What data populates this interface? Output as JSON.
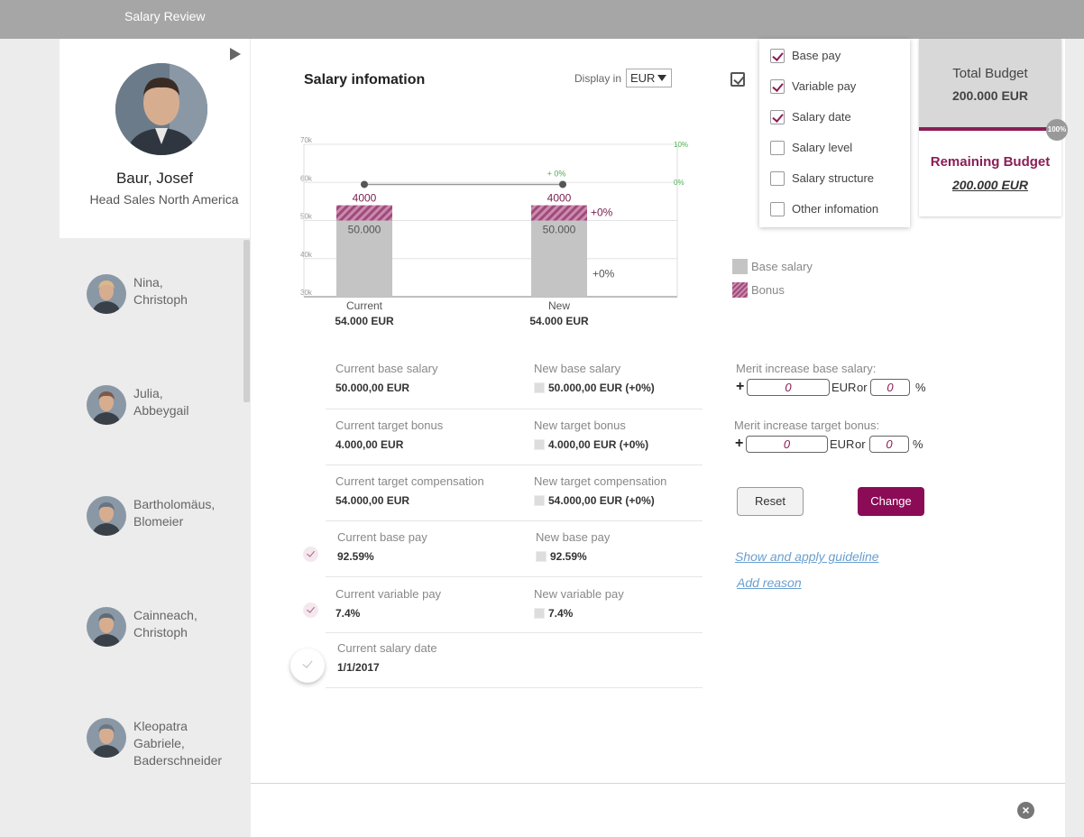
{
  "app": {
    "title": "Salary Review"
  },
  "profile": {
    "name": "Baur, Josef",
    "role": "Head Sales North America"
  },
  "employees": [
    {
      "name": "Nina,\nChristoph",
      "avatar_color": "#d9b88a"
    },
    {
      "name": "Julia,\nAbbeygail",
      "avatar_color": "#7a5a4a"
    },
    {
      "name": "Bartholomäus,\nBlomeier",
      "avatar_color": "#6a7480"
    },
    {
      "name": "Cainneach,\nChristoph",
      "avatar_color": "#5e6b78"
    },
    {
      "name": "Kleopatra\nGabriele,\nBaderschneider",
      "avatar_color": "#6b7786"
    }
  ],
  "salary": {
    "title": "Salary infomation",
    "display_in_label": "Display in",
    "currency": "EUR"
  },
  "filter_menu": {
    "items": [
      {
        "label": "Base pay",
        "checked": true
      },
      {
        "label": "Variable pay",
        "checked": true
      },
      {
        "label": "Salary date",
        "checked": true
      },
      {
        "label": "Salary level",
        "checked": false
      },
      {
        "label": "Salary structure",
        "checked": false
      },
      {
        "label": "Other infomation",
        "checked": false
      }
    ]
  },
  "budget": {
    "total_label": "Total Budget",
    "total_value": "200.000 EUR",
    "progress_label": "100%",
    "progress_pct": 100,
    "remaining_label": "Remaining Budget",
    "remaining_value": "200.000 EUR"
  },
  "chart_data": {
    "type": "bar",
    "categories": [
      "Current",
      "New"
    ],
    "category_totals": [
      "54.000 EUR",
      "54.000 EUR"
    ],
    "series": [
      {
        "name": "Base salary",
        "values": [
          50000,
          50000
        ],
        "labels": [
          "50.000",
          "50.000"
        ],
        "color": "#c4c4c4"
      },
      {
        "name": "Bonus",
        "values": [
          4000,
          4000
        ],
        "labels": [
          "4000",
          "4000"
        ],
        "color": "#a14a7b"
      }
    ],
    "ylim": [
      30000,
      70000
    ],
    "y_ticks": [
      30000,
      40000,
      50000,
      60000,
      70000
    ],
    "y_tick_labels": [
      "30k",
      "40k",
      "50k",
      "60k",
      "70k"
    ],
    "y2_tick_labels": [
      "10%",
      "0%"
    ],
    "change_labels": {
      "bonus_change": "+0%",
      "base_change": "+0%",
      "line_change": "+ 0%"
    },
    "grid": true
  },
  "details": {
    "current_base_salary": {
      "label": "Current base salary",
      "value": "50.000,00 EUR"
    },
    "new_base_salary": {
      "label": "New base salary",
      "value": "50.000,00 EUR (+0%)"
    },
    "current_target_bonus": {
      "label": "Current target bonus",
      "value": "4.000,00 EUR"
    },
    "new_target_bonus": {
      "label": "New target bonus",
      "value": "4.000,00 EUR  (+0%)"
    },
    "current_target_comp": {
      "label": "Current target compensation",
      "value": "54.000,00 EUR"
    },
    "new_target_comp": {
      "label": "New target compensation",
      "value": "54.000,00 EUR  (+0%)"
    },
    "current_base_pay": {
      "label": "Current base pay",
      "value": "92.59%"
    },
    "new_base_pay": {
      "label": "New base pay",
      "value": "92.59%"
    },
    "current_variable_pay": {
      "label": "Current variable pay",
      "value": "7.4%"
    },
    "new_variable_pay": {
      "label": "New variable pay",
      "value": "7.4%"
    },
    "current_salary_date": {
      "label": "Current salary date",
      "value": "1/1/2017"
    }
  },
  "merit": {
    "base_label": "Merit increase base salary:",
    "bonus_label": "Merit increase target bonus:",
    "plus": "+",
    "amount_value": "0",
    "percent_value": "0",
    "currency": "EUR",
    "or": "or",
    "pct": "%"
  },
  "actions": {
    "reset": "Reset",
    "change": "Change",
    "guideline_link": "Show and apply guideline",
    "reason_link": "Add reason"
  },
  "colors": {
    "accent": "#8b0b57",
    "bonus": "#a14a7b",
    "base": "#c4c4c4",
    "positive": "#4caf50"
  }
}
